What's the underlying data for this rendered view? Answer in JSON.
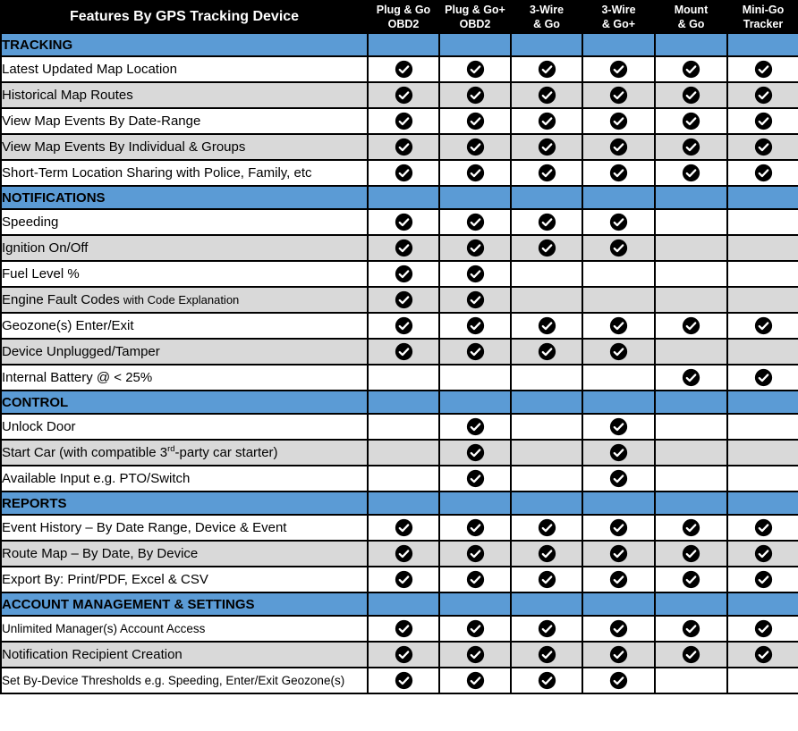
{
  "colors": {
    "header_bg": "#000000",
    "accent_blue": "#5B9BD5",
    "row_alt": "#D9D9D9",
    "check_fill": "#000000",
    "check_mark": "#ffffff"
  },
  "table": {
    "title": "Features By GPS Tracking Device",
    "columns": [
      {
        "line1": "Plug & Go",
        "line2": "OBD2"
      },
      {
        "line1": "Plug & Go+",
        "line2": "OBD2"
      },
      {
        "line1": "3-Wire",
        "line2": "& Go"
      },
      {
        "line1": "3-Wire",
        "line2": "& Go+"
      },
      {
        "line1": "Mount",
        "line2": "& Go"
      },
      {
        "line1": "Mini-Go",
        "line2": "Tracker"
      }
    ],
    "sections": [
      {
        "name": "TRACKING",
        "rows": [
          {
            "parts": [
              {
                "t": "Latest Updated Map Location"
              }
            ],
            "checks": [
              1,
              1,
              1,
              1,
              1,
              1
            ]
          },
          {
            "parts": [
              {
                "t": "Historical Map Routes"
              }
            ],
            "checks": [
              1,
              1,
              1,
              1,
              1,
              1
            ]
          },
          {
            "parts": [
              {
                "t": "View Map Events By Date-Range"
              }
            ],
            "checks": [
              1,
              1,
              1,
              1,
              1,
              1
            ]
          },
          {
            "parts": [
              {
                "t": "View Map Events By Individual & Groups"
              }
            ],
            "checks": [
              1,
              1,
              1,
              1,
              1,
              1
            ]
          },
          {
            "parts": [
              {
                "t": "Short-Term Location Sharing with Police, Family, etc"
              }
            ],
            "checks": [
              1,
              1,
              1,
              1,
              1,
              1
            ]
          }
        ]
      },
      {
        "name": "NOTIFICATIONS",
        "rows": [
          {
            "parts": [
              {
                "t": "Speeding"
              }
            ],
            "checks": [
              1,
              1,
              1,
              1,
              0,
              0
            ]
          },
          {
            "parts": [
              {
                "t": "Ignition On/Off"
              }
            ],
            "checks": [
              1,
              1,
              1,
              1,
              0,
              0
            ]
          },
          {
            "parts": [
              {
                "t": "Fuel Level %"
              }
            ],
            "checks": [
              1,
              1,
              0,
              0,
              0,
              0
            ]
          },
          {
            "parts": [
              {
                "t": "Engine Fault Codes "
              },
              {
                "t": "with Code Explanation",
                "small": true
              }
            ],
            "checks": [
              1,
              1,
              0,
              0,
              0,
              0
            ]
          },
          {
            "parts": [
              {
                "t": "Geozone(s) Enter/Exit"
              }
            ],
            "checks": [
              1,
              1,
              1,
              1,
              1,
              1
            ]
          },
          {
            "parts": [
              {
                "t": "Device Unplugged/Tamper"
              }
            ],
            "checks": [
              1,
              1,
              1,
              1,
              0,
              0
            ]
          },
          {
            "parts": [
              {
                "t": "Internal Battery @ < 25%"
              }
            ],
            "checks": [
              0,
              0,
              0,
              0,
              1,
              1
            ]
          }
        ]
      },
      {
        "name": "CONTROL",
        "rows": [
          {
            "parts": [
              {
                "t": "Unlock Door"
              }
            ],
            "checks": [
              0,
              1,
              0,
              1,
              0,
              0
            ]
          },
          {
            "parts": [
              {
                "t": "Start Car (with compatible 3"
              },
              {
                "t": "rd",
                "sup": true
              },
              {
                "t": "-party car starter)"
              }
            ],
            "checks": [
              0,
              1,
              0,
              1,
              0,
              0
            ]
          },
          {
            "parts": [
              {
                "t": "Available Input e.g. PTO/Switch"
              }
            ],
            "checks": [
              0,
              1,
              0,
              1,
              0,
              0
            ]
          }
        ]
      },
      {
        "name": "REPORTS",
        "rows": [
          {
            "parts": [
              {
                "t": "Event History – By Date Range, Device & Event"
              }
            ],
            "checks": [
              1,
              1,
              1,
              1,
              1,
              1
            ]
          },
          {
            "parts": [
              {
                "t": "Route Map – By Date, By Device"
              }
            ],
            "checks": [
              1,
              1,
              1,
              1,
              1,
              1
            ]
          },
          {
            "parts": [
              {
                "t": "Export By: Print/PDF, Excel & CSV"
              }
            ],
            "checks": [
              1,
              1,
              1,
              1,
              1,
              1
            ]
          }
        ]
      },
      {
        "name": "ACCOUNT MANAGEMENT & SETTINGS",
        "rows": [
          {
            "parts": [
              {
                "t": "Unlimited Manager(s) Account Access"
              }
            ],
            "small": true,
            "checks": [
              1,
              1,
              1,
              1,
              1,
              1
            ]
          },
          {
            "parts": [
              {
                "t": "Notification Recipient Creation"
              }
            ],
            "checks": [
              1,
              1,
              1,
              1,
              1,
              1
            ]
          },
          {
            "parts": [
              {
                "t": "Set By-Device Thresholds e.g. Speeding, Enter/Exit Geozone(s)"
              }
            ],
            "small": true,
            "checks": [
              1,
              1,
              1,
              1,
              0,
              0
            ]
          }
        ]
      }
    ]
  },
  "icons": {
    "check": "check-circle-icon"
  }
}
